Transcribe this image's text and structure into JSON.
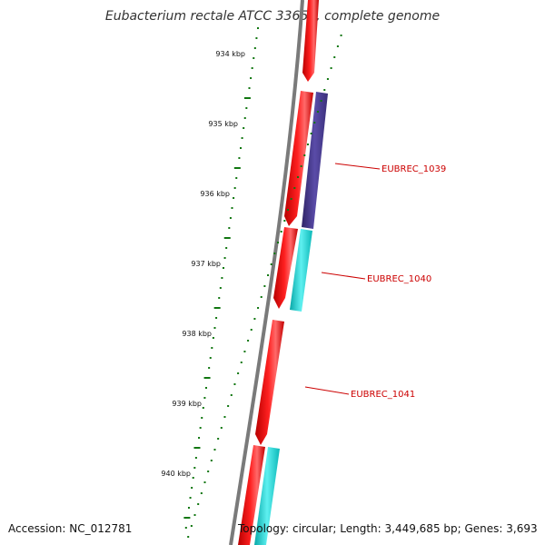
{
  "title": "Eubacterium rectale ATCC 33656, complete genome",
  "footer": {
    "accession": "Accession: NC_012781",
    "topology": "Topology: circular; Length: 3,449,685 bp; Genes: 3,693"
  },
  "ruler": {
    "labels": [
      "934 kbp",
      "935 kbp",
      "936 kbp",
      "937 kbp",
      "938 kbp",
      "939 kbp",
      "940 kbp"
    ],
    "color": "#117711"
  },
  "backbone_color": "#888888",
  "colors": {
    "forward": "#ee0000",
    "purple": "#4a3d8f",
    "cyan": "#11c4c4",
    "label": "#cc0000"
  },
  "gene_labels": [
    "EUBREC_1039",
    "EUBREC_1040",
    "EUBREC_1041"
  ]
}
